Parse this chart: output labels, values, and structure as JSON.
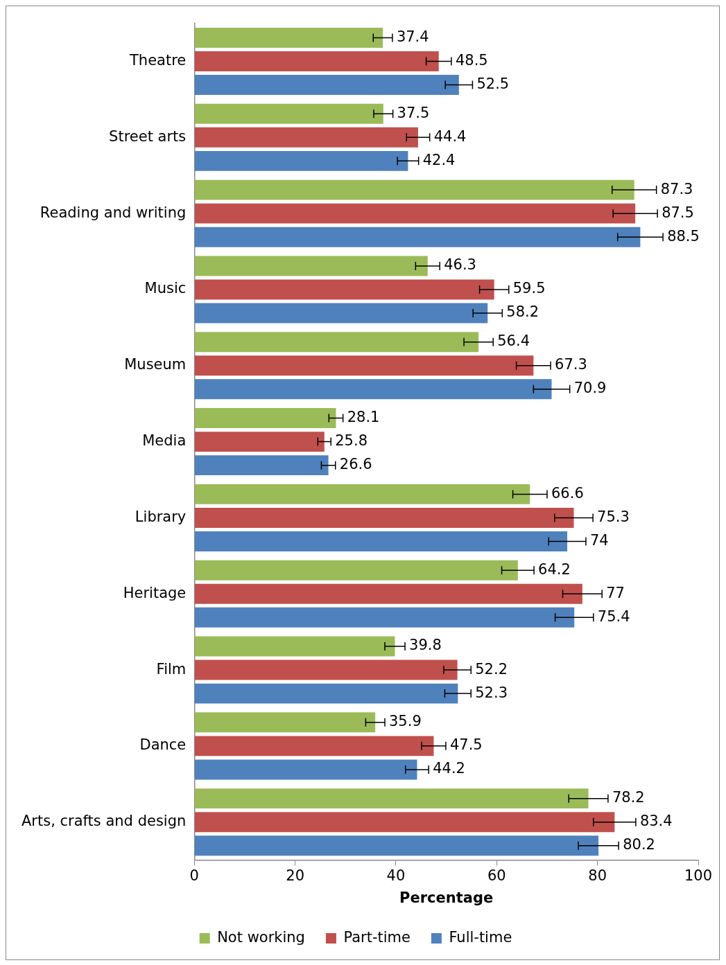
{
  "chart_data": {
    "type": "bar",
    "orientation": "horizontal",
    "categories": [
      "Theatre",
      "Street arts",
      "Reading and writing",
      "Music",
      "Museum",
      "Media",
      "Library",
      "Heritage",
      "Film",
      "Dance",
      "Arts, crafts and design"
    ],
    "series": [
      {
        "name": "Not working",
        "color": "#9bbb59",
        "values": [
          37.4,
          37.5,
          87.3,
          46.3,
          56.4,
          28.1,
          66.6,
          64.2,
          39.8,
          35.9,
          78.2
        ],
        "errors": [
          1.9,
          1.9,
          4.4,
          2.4,
          2.9,
          1.4,
          3.4,
          3.2,
          2.0,
          1.9,
          3.9
        ]
      },
      {
        "name": "Part-time",
        "color": "#c0504d",
        "values": [
          48.5,
          44.4,
          87.5,
          59.5,
          67.3,
          25.8,
          75.3,
          77,
          52.2,
          47.5,
          83.4
        ],
        "errors": [
          2.5,
          2.3,
          4.4,
          2.9,
          3.4,
          1.3,
          3.8,
          3.9,
          2.7,
          2.4,
          4.2
        ]
      },
      {
        "name": "Full-time",
        "color": "#4f81bd",
        "values": [
          52.5,
          42.4,
          88.5,
          58.2,
          70.9,
          26.6,
          74,
          75.4,
          52.3,
          44.2,
          80.2
        ],
        "errors": [
          2.7,
          2.1,
          4.5,
          2.9,
          3.6,
          1.4,
          3.7,
          3.8,
          2.6,
          2.3,
          4.0
        ]
      }
    ],
    "xlabel": "Percentage",
    "xlim": [
      0,
      100
    ],
    "xticks": [
      0,
      20,
      40,
      60,
      80,
      100
    ],
    "grid": false,
    "legend": "bottom",
    "data_labels": true
  }
}
